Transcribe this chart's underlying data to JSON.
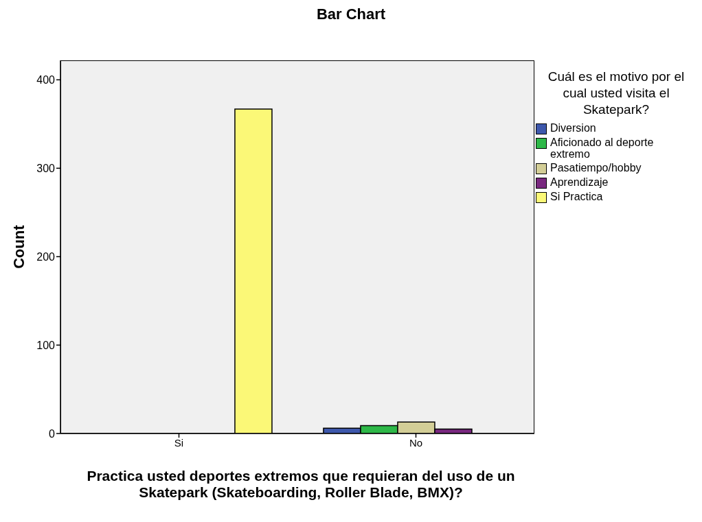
{
  "chart_data": {
    "type": "bar",
    "title": "Bar Chart",
    "xlabel": "Practica usted deportes extremos que requieran del uso de un Skatepark (Skateboarding, Roller Blade, BMX)?",
    "ylabel": "Count",
    "legend_title": "Cuál es el motivo por el cual usted visita el Skatepark?",
    "categories": [
      "Si",
      "No"
    ],
    "series": [
      {
        "name": "Diversion",
        "color": "#3e58ac",
        "values": [
          null,
          6
        ]
      },
      {
        "name": "Aficionado al deporte extremo",
        "color": "#2eb848",
        "values": [
          null,
          9
        ]
      },
      {
        "name": "Pasatiempo/hobby",
        "color": "#d3ce97",
        "values": [
          null,
          13
        ]
      },
      {
        "name": "Aprendizaje",
        "color": "#79287f",
        "values": [
          null,
          5
        ]
      },
      {
        "name": "Si Practica",
        "color": "#fbf877",
        "values": [
          367,
          null
        ]
      }
    ],
    "ylim": [
      0,
      422
    ],
    "yticks": [
      0,
      100,
      200,
      300,
      400
    ],
    "grid": false,
    "legend": "right"
  }
}
